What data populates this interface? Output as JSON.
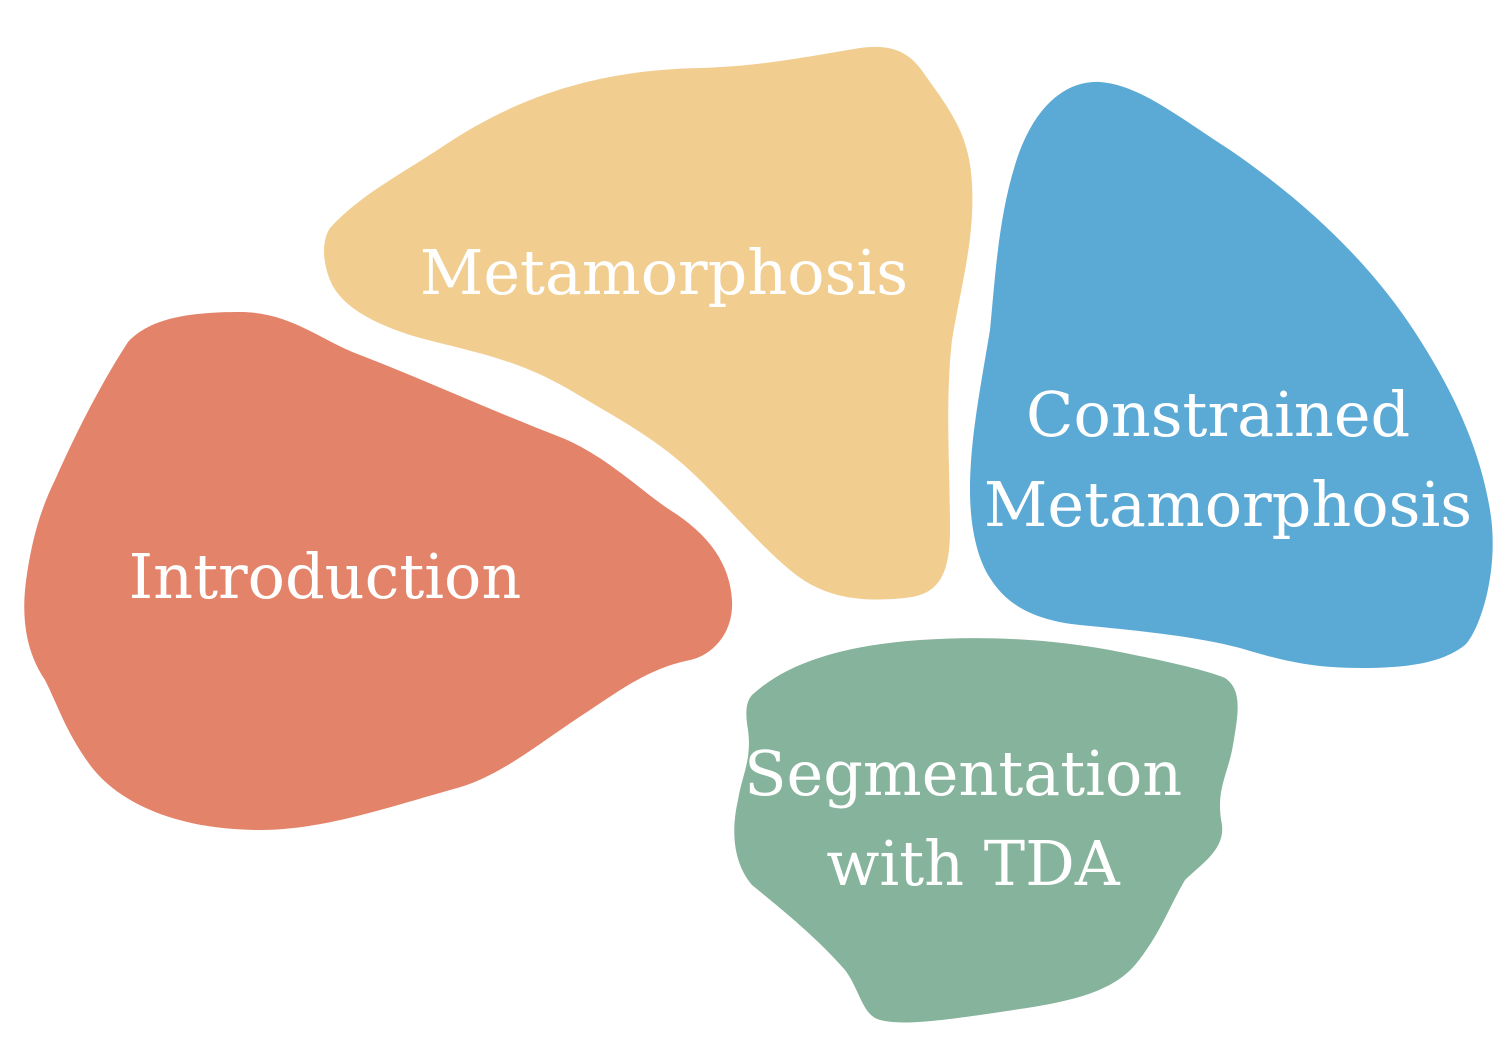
{
  "regions": [
    {
      "id": "metamorphosis",
      "lines": [
        "Metamorphosis"
      ],
      "color": "#F1CD90"
    },
    {
      "id": "introduction",
      "lines": [
        "Introduction"
      ],
      "color": "#E3836A"
    },
    {
      "id": "constrained-metamorphosis",
      "lines": [
        "Constrained",
        "Metamorphosis"
      ],
      "color": "#5BA9D5"
    },
    {
      "id": "segmentation-with-tda",
      "lines": [
        "Segmentation",
        "with TDA"
      ],
      "color": "#85B39B"
    }
  ]
}
